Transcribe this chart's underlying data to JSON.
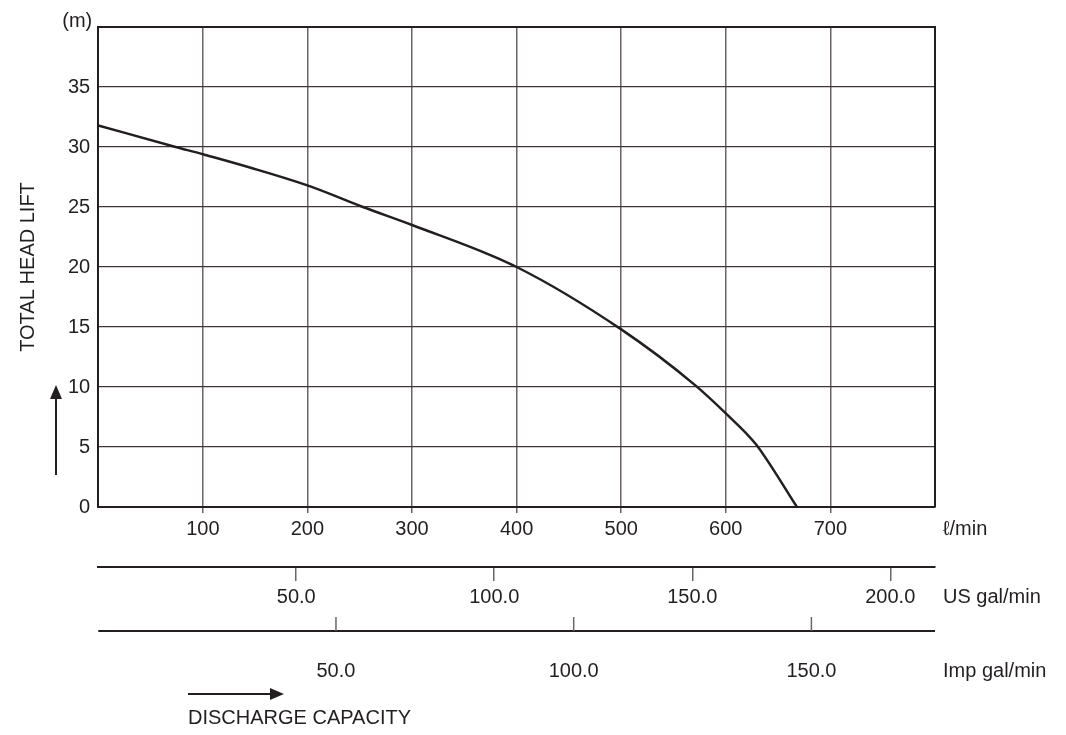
{
  "chart_data": {
    "type": "line",
    "ylabel": "TOTAL HEAD LIFT",
    "xlabel": "ℓ/min",
    "x2label": "US gal/min",
    "annotations": [
      "(m)",
      "DISCHARGE CAPACITY",
      "Imp gal/min",
      "50.0",
      "100.0",
      "150.0"
    ],
    "x": [
      0,
      74,
      100,
      200,
      253,
      300,
      400,
      500,
      570,
      600,
      629,
      668
    ],
    "series": [
      {
        "color": "#231f20",
        "values": [
          31.8,
          30,
          29.4,
          26.8,
          25,
          23.5,
          20,
          14.8,
          10.2,
          7.8,
          5.2,
          0
        ]
      }
    ],
    "xlim": [
      0,
      800
    ],
    "xticks": [
      100,
      200,
      300,
      400,
      500,
      600,
      700
    ],
    "x2lim": [
      0,
      211.3
    ],
    "x2ticks": [
      {
        "value": 50,
        "label": "50.0"
      },
      {
        "value": 100,
        "label": "100.0"
      },
      {
        "value": 150,
        "label": "150.0"
      },
      {
        "value": 200,
        "label": "200.0"
      }
    ],
    "ylim": [
      0,
      40
    ],
    "yticks": [
      0,
      5,
      10,
      15,
      20,
      25,
      30,
      35
    ],
    "grid": true,
    "marker": "none",
    "line_style": "solid"
  }
}
